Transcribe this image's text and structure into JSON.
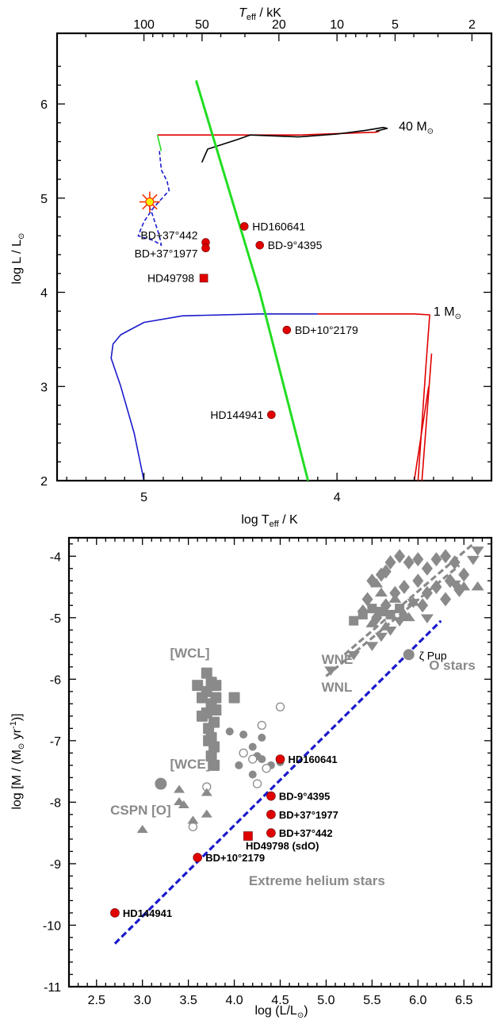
{
  "colors": {
    "grey": "#8a8a8a",
    "red": "#e00000",
    "blue": "#1a1acc",
    "green": "#22dd22",
    "black": "#000000",
    "star_fill": "#ffee00",
    "star_rays": "#ff3300"
  },
  "chart_data": [
    {
      "type": "line",
      "panel": "top",
      "xlabel_main": "log T",
      "xlabel_sub": "eff",
      "xlabel_unit": " / K",
      "top_label_main": "T",
      "top_label_sub": "eff",
      "top_label_unit": " / kK",
      "ylabel_main": "log L / L",
      "xlim": [
        5.45,
        3.2
      ],
      "ylim": [
        2,
        6.75
      ],
      "x_ticks": [
        {
          "v": 5,
          "label": "5"
        },
        {
          "v": 4,
          "label": "4"
        }
      ],
      "y_ticks": [
        {
          "v": 2,
          "label": "2"
        },
        {
          "v": 3,
          "label": "3"
        },
        {
          "v": 4,
          "label": "4"
        },
        {
          "v": 5,
          "label": "5"
        },
        {
          "v": 6,
          "label": "6"
        }
      ],
      "top_ticks": [
        {
          "v": 2.0,
          "label": "100"
        },
        {
          "v": 1.699,
          "label": "50"
        },
        {
          "v": 1.301,
          "label": "20"
        },
        {
          "v": 1.0,
          "label": "10"
        },
        {
          "v": 0.699,
          "label": "5"
        },
        {
          "v": 0.301,
          "label": "2"
        }
      ],
      "track_labels": [
        {
          "text": "40 M",
          "lx": 3.68,
          "ly": 5.72
        },
        {
          "text": "1 M",
          "lx": 3.5,
          "ly": 3.75
        }
      ],
      "series": [
        {
          "color": "red",
          "style": "solid",
          "points": [
            [
              4.93,
              5.67
            ],
            [
              4.7,
              5.67
            ],
            [
              4.2,
              5.67
            ],
            [
              3.8,
              5.7
            ],
            [
              3.78,
              5.71
            ]
          ]
        },
        {
          "color": "black",
          "style": "solid",
          "points": [
            [
              4.7,
              5.38
            ],
            [
              4.67,
              5.52
            ],
            [
              4.52,
              5.62
            ],
            [
              4.45,
              5.67
            ],
            [
              4.2,
              5.65
            ],
            [
              4.0,
              5.68
            ],
            [
              3.85,
              5.72
            ],
            [
              3.76,
              5.75
            ],
            [
              3.74,
              5.74
            ],
            [
              3.8,
              5.71
            ]
          ]
        },
        {
          "color": "green",
          "style": "solid",
          "points": [
            [
              4.91,
              5.5
            ],
            [
              4.93,
              5.67
            ]
          ]
        },
        {
          "color": "blue",
          "style": "dashed",
          "points": [
            [
              4.92,
              5.5
            ],
            [
              4.91,
              5.3
            ],
            [
              4.88,
              5.18
            ],
            [
              4.87,
              5.08
            ],
            [
              4.95,
              4.9
            ],
            [
              5.0,
              4.75
            ],
            [
              5.03,
              4.6
            ],
            [
              4.95,
              4.55
            ],
            [
              4.91,
              4.5
            ],
            [
              4.92,
              4.6
            ],
            [
              4.96,
              4.85
            ],
            [
              4.98,
              4.95
            ]
          ]
        },
        {
          "color": "blue",
          "style": "solid",
          "points": [
            [
              5.0,
              2.0
            ],
            [
              5.05,
              2.5
            ],
            [
              5.12,
              3.0
            ],
            [
              5.17,
              3.3
            ],
            [
              5.16,
              3.45
            ],
            [
              5.12,
              3.55
            ],
            [
              5.0,
              3.68
            ],
            [
              4.8,
              3.75
            ],
            [
              4.4,
              3.77
            ],
            [
              4.1,
              3.77
            ]
          ]
        },
        {
          "color": "red",
          "style": "solid",
          "points": [
            [
              4.1,
              3.77
            ],
            [
              3.6,
              3.77
            ],
            [
              3.52,
              3.76
            ],
            [
              3.54,
              3.2
            ],
            [
              3.58,
              2.0
            ]
          ]
        },
        {
          "color": "red",
          "style": "solid",
          "points": [
            [
              3.51,
              3.35
            ],
            [
              3.56,
              2.0
            ]
          ]
        },
        {
          "color": "red",
          "style": "solid",
          "points": [
            [
              3.525,
              3.0
            ],
            [
              3.6,
              2.0
            ]
          ]
        },
        {
          "color": "green",
          "style": "solid",
          "points": [
            [
              4.73,
              6.25
            ],
            [
              4.4,
              4.0
            ],
            [
              4.15,
              2.0
            ]
          ]
        }
      ],
      "stars": [
        {
          "name": "BD+37°442",
          "x": 4.68,
          "y": 4.53,
          "marker": "circle",
          "label_dx": -10,
          "label_dy": -4,
          "anchor": "end"
        },
        {
          "name": "BD+37°1977",
          "x": 4.68,
          "y": 4.47,
          "marker": "circle",
          "label_dx": -10,
          "label_dy": 12,
          "anchor": "end"
        },
        {
          "name": "HD160641",
          "x": 4.48,
          "y": 4.7,
          "marker": "circle",
          "label_dx": 10,
          "label_dy": 5,
          "anchor": "start"
        },
        {
          "name": "BD-9°4395",
          "x": 4.4,
          "y": 4.5,
          "marker": "circle",
          "label_dx": 10,
          "label_dy": 5,
          "anchor": "start"
        },
        {
          "name": "HD49798",
          "x": 4.69,
          "y": 4.15,
          "marker": "square",
          "label_dx": -12,
          "label_dy": 5,
          "anchor": "end"
        },
        {
          "name": "BD+10°2179",
          "x": 4.26,
          "y": 3.6,
          "marker": "circle",
          "label_dx": 10,
          "label_dy": 5,
          "anchor": "start"
        },
        {
          "name": "HD144941",
          "x": 4.34,
          "y": 2.7,
          "marker": "circle",
          "label_dx": -10,
          "label_dy": 5,
          "anchor": "end"
        }
      ],
      "highlight_star": {
        "x": 4.97,
        "y": 4.96
      }
    },
    {
      "type": "scatter",
      "panel": "bottom",
      "xlabel_main": "log (L/L",
      "xlabel_end": ")",
      "ylabel_main": "log [M / (M",
      "ylabel_unit": " yr",
      "ylabel_sup": "-1",
      "ylabel_end": ")]",
      "xlim": [
        2.2,
        6.8
      ],
      "ylim": [
        -11,
        -3.7
      ],
      "x_ticks": [
        {
          "v": 2.5,
          "label": "2.5"
        },
        {
          "v": 3.0,
          "label": "3.0"
        },
        {
          "v": 3.5,
          "label": "3.5"
        },
        {
          "v": 4.0,
          "label": "4.0"
        },
        {
          "v": 4.5,
          "label": "4.5"
        },
        {
          "v": 5.0,
          "label": "5.0"
        },
        {
          "v": 5.5,
          "label": "5.5"
        },
        {
          "v": 6.0,
          "label": "6.0"
        },
        {
          "v": 6.5,
          "label": "6.5"
        }
      ],
      "y_ticks": [
        {
          "v": -4,
          "label": "-4"
        },
        {
          "v": -5,
          "label": "-5"
        },
        {
          "v": -6,
          "label": "-6"
        },
        {
          "v": -7,
          "label": "-7"
        },
        {
          "v": -8,
          "label": "-8"
        },
        {
          "v": -9,
          "label": "-9"
        },
        {
          "v": -10,
          "label": "-10"
        },
        {
          "v": -11,
          "label": "-11"
        }
      ],
      "group_labels": [
        {
          "text": "[WCL]",
          "x": 3.3,
          "y": -5.65,
          "color": "grey"
        },
        {
          "text": "[WCE]",
          "x": 3.3,
          "y": -7.45,
          "color": "grey"
        },
        {
          "text": "CSPN [O]",
          "x": 2.65,
          "y": -8.2,
          "color": "grey"
        },
        {
          "text": "WNE",
          "x": 4.95,
          "y": -5.75,
          "color": "grey"
        },
        {
          "text": "WNL",
          "x": 4.95,
          "y": -6.2,
          "color": "grey"
        },
        {
          "text": "O stars",
          "x": 6.12,
          "y": -5.85,
          "color": "grey"
        },
        {
          "text": "Extreme helium stars",
          "x": 4.9,
          "y": -9.35,
          "color": "red"
        }
      ],
      "zeta_pup": {
        "label": "ζ Pup",
        "x": 5.9,
        "y": -5.6
      },
      "fits": [
        {
          "name": "",
          "color": "blue",
          "points": [
            [
              2.7,
              -10.3
            ],
            [
              6.25,
              -5.05
            ]
          ]
        },
        {
          "name": "",
          "color": "grey",
          "points": [
            [
              5.2,
              -5.6
            ],
            [
              6.6,
              -3.8
            ]
          ]
        },
        {
          "name": "",
          "color": "grey",
          "points": [
            [
              5.0,
              -5.95
            ],
            [
              6.45,
              -4.15
            ]
          ]
        }
      ],
      "stars": [
        {
          "name": "HD160641",
          "x": 4.5,
          "y": -7.3,
          "marker": "circle"
        },
        {
          "name": "BD-9°4395",
          "x": 4.4,
          "y": -7.9,
          "marker": "circle"
        },
        {
          "name": "BD+37°1977",
          "x": 4.4,
          "y": -8.2,
          "marker": "circle"
        },
        {
          "name": "BD+37°442",
          "x": 4.4,
          "y": -8.5,
          "marker": "circle"
        },
        {
          "name": "HD49798 (sdO)",
          "x": 4.15,
          "y": -8.55,
          "marker": "square"
        },
        {
          "name": "BD+10°2179",
          "x": 3.6,
          "y": -8.9,
          "marker": "circle"
        },
        {
          "name": "HD144941",
          "x": 2.7,
          "y": -9.8,
          "marker": "circle"
        }
      ],
      "wr_cspn_squares": [
        [
          3.6,
          -6.1
        ],
        [
          3.7,
          -5.9
        ],
        [
          3.65,
          -6.3
        ],
        [
          3.7,
          -6.2
        ],
        [
          3.75,
          -6.05
        ],
        [
          3.8,
          -6.1
        ],
        [
          3.65,
          -6.6
        ],
        [
          3.7,
          -6.55
        ],
        [
          3.75,
          -6.4
        ],
        [
          3.8,
          -6.3
        ],
        [
          3.72,
          -6.8
        ],
        [
          3.78,
          -6.7
        ],
        [
          3.75,
          -6.95
        ],
        [
          3.78,
          -7.1
        ],
        [
          3.75,
          -7.25
        ],
        [
          3.78,
          -7.4
        ],
        [
          3.8,
          -6.5
        ],
        [
          3.72,
          -7.0
        ],
        [
          4.0,
          -6.3
        ]
      ],
      "cspn_filled_circles": [
        [
          3.2,
          -7.7
        ],
        [
          3.95,
          -6.85
        ],
        [
          4.1,
          -6.9
        ],
        [
          4.2,
          -7.1
        ],
        [
          4.25,
          -7.25
        ],
        [
          4.3,
          -6.95
        ],
        [
          4.4,
          -7.4
        ],
        [
          4.5,
          -7.35
        ],
        [
          4.2,
          -7.55
        ],
        [
          4.3,
          -7.3
        ],
        [
          4.05,
          -7.4
        ]
      ],
      "cspn_open_circles": [
        [
          4.5,
          -6.45
        ],
        [
          4.3,
          -6.75
        ],
        [
          4.1,
          -7.2
        ],
        [
          4.2,
          -7.3
        ],
        [
          4.35,
          -7.45
        ],
        [
          4.25,
          -7.7
        ],
        [
          3.55,
          -8.4
        ],
        [
          3.7,
          -7.75
        ]
      ],
      "cspn_triangles": [
        [
          3.0,
          -8.45
        ],
        [
          3.4,
          -7.8
        ],
        [
          3.45,
          -8.05
        ],
        [
          3.7,
          -7.85
        ],
        [
          3.7,
          -8.2
        ],
        [
          3.55,
          -8.3
        ],
        [
          3.4,
          -8.0
        ]
      ],
      "wn_diamonds": [
        [
          5.5,
          -4.4
        ],
        [
          5.6,
          -4.3
        ],
        [
          5.7,
          -4.1
        ],
        [
          5.8,
          -4.0
        ],
        [
          5.9,
          -4.1
        ],
        [
          6.0,
          -4.05
        ],
        [
          6.1,
          -4.2
        ],
        [
          6.2,
          -4.05
        ],
        [
          6.3,
          -4.0
        ],
        [
          6.4,
          -4.1
        ],
        [
          5.75,
          -4.6
        ],
        [
          5.85,
          -4.5
        ],
        [
          6.0,
          -4.4
        ],
        [
          6.1,
          -4.6
        ],
        [
          6.2,
          -4.5
        ],
        [
          6.35,
          -4.4
        ],
        [
          6.5,
          -4.3
        ],
        [
          5.65,
          -4.8
        ],
        [
          5.55,
          -5.0
        ],
        [
          5.45,
          -4.7
        ],
        [
          6.3,
          -4.7
        ],
        [
          6.45,
          -4.55
        ],
        [
          5.65,
          -4.25
        ],
        [
          5.4,
          -4.9
        ],
        [
          6.05,
          -4.8
        ]
      ],
      "wn_squares": [
        [
          5.3,
          -5.05
        ],
        [
          5.4,
          -4.95
        ],
        [
          5.5,
          -4.85
        ],
        [
          5.6,
          -4.9
        ],
        [
          5.7,
          -4.95
        ],
        [
          5.8,
          -4.85
        ]
      ],
      "wn_triangles": [
        [
          5.55,
          -4.45
        ],
        [
          5.6,
          -4.6
        ],
        [
          5.75,
          -4.7
        ],
        [
          5.85,
          -4.95
        ],
        [
          5.9,
          -5.0
        ],
        [
          5.95,
          -4.75
        ],
        [
          6.5,
          -4.5
        ],
        [
          6.65,
          -4.5
        ],
        [
          5.5,
          -5.1
        ],
        [
          5.65,
          -5.15
        ]
      ],
      "wn_down_triangles": [
        [
          5.05,
          -5.85
        ],
        [
          5.3,
          -5.6
        ],
        [
          5.5,
          -5.45
        ],
        [
          5.6,
          -5.3
        ],
        [
          5.7,
          -5.2
        ],
        [
          5.8,
          -5.05
        ],
        [
          5.95,
          -4.75
        ],
        [
          6.1,
          -5.0
        ],
        [
          6.4,
          -4.45
        ],
        [
          6.6,
          -4.05
        ],
        [
          6.65,
          -3.9
        ]
      ]
    }
  ]
}
